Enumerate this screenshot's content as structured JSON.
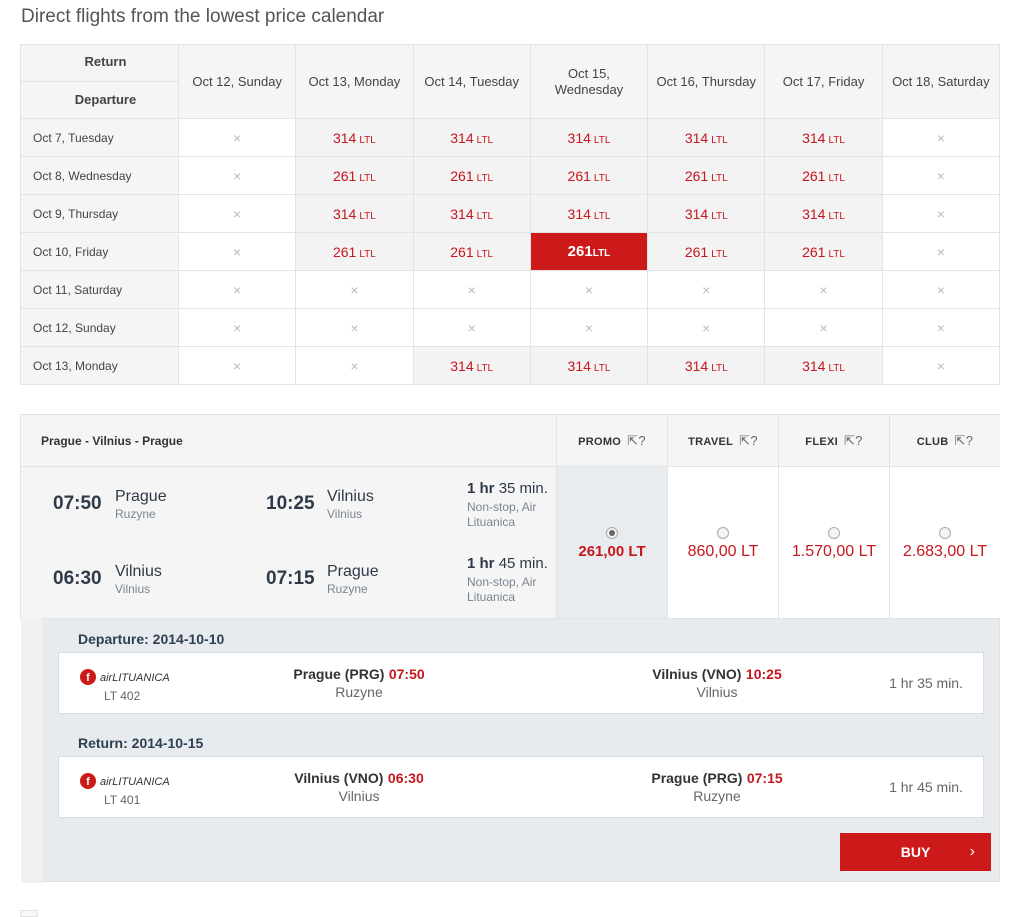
{
  "page": {
    "title": "Direct flights from the lowest price calendar"
  },
  "calendar": {
    "return_label": "Return",
    "departure_label": "Departure",
    "columns": [
      "Oct 12, Sunday",
      "Oct 13, Monday",
      "Oct 14, Tuesday",
      "Oct 15,\nWednesday",
      "Oct 16, Thursday",
      "Oct 17, Friday",
      "Oct 18, Saturday"
    ],
    "currency": "LTL",
    "none_symbol": "×",
    "rows": [
      {
        "label": "Oct 7, Tuesday",
        "cells": [
          null,
          "314",
          "314",
          "314",
          "314",
          "314",
          null
        ]
      },
      {
        "label": "Oct 8, Wednesday",
        "cells": [
          null,
          "261",
          "261",
          "261",
          "261",
          "261",
          null
        ]
      },
      {
        "label": "Oct 9, Thursday",
        "cells": [
          null,
          "314",
          "314",
          "314",
          "314",
          "314",
          null
        ]
      },
      {
        "label": "Oct 10, Friday",
        "cells": [
          null,
          "261",
          "261",
          "261",
          "261",
          "261",
          null
        ]
      },
      {
        "label": "Oct 11, Saturday",
        "cells": [
          null,
          null,
          null,
          null,
          null,
          null,
          null
        ]
      },
      {
        "label": "Oct 12, Sunday",
        "cells": [
          null,
          null,
          null,
          null,
          null,
          null,
          null
        ]
      },
      {
        "label": "Oct 13, Monday",
        "cells": [
          null,
          null,
          "314",
          "314",
          "314",
          "314",
          null
        ]
      }
    ],
    "selected": {
      "row": 3,
      "col": 3
    }
  },
  "fares": {
    "route": "Prague - Vilnius - Prague",
    "legs": [
      {
        "dep_time": "07:50",
        "dep_city": "Prague",
        "dep_airport": "Ruzyne",
        "arr_time": "10:25",
        "arr_city": "Vilnius",
        "arr_airport": "Vilnius",
        "dur_hr": "1 hr",
        "dur_min": "35 min.",
        "info": "Non-stop, Air Lituanica"
      },
      {
        "dep_time": "06:30",
        "dep_city": "Vilnius",
        "dep_airport": "Vilnius",
        "arr_time": "07:15",
        "arr_city": "Prague",
        "arr_airport": "Ruzyne",
        "dur_hr": "1 hr",
        "dur_min": "45 min.",
        "info": "Non-stop, Air Lituanica"
      }
    ],
    "classes": [
      {
        "name": "PROMO",
        "price": "261,00 LT",
        "selected": true
      },
      {
        "name": "TRAVEL",
        "price": "860,00 LT",
        "selected": false
      },
      {
        "name": "FLEXI",
        "price": "1.570,00 LT",
        "selected": false
      },
      {
        "name": "CLUB",
        "price": "2.683,00 LT",
        "selected": false
      }
    ],
    "info_icon": "cursor-help-icon"
  },
  "details": {
    "departure": {
      "title": "Departure: 2014-10-10",
      "airline": "airLITUANICA",
      "flight_no": "LT 402",
      "from_name": "Prague (PRG)",
      "from_time": "07:50",
      "from_city": "Ruzyne",
      "to_name": "Vilnius (VNO)",
      "to_time": "10:25",
      "to_city": "Vilnius",
      "duration": "1 hr 35 min."
    },
    "return": {
      "title": "Return: 2014-10-15",
      "airline": "airLITUANICA",
      "flight_no": "LT 401",
      "from_name": "Vilnius (VNO)",
      "from_time": "06:30",
      "from_city": "Vilnius",
      "to_name": "Prague (PRG)",
      "to_time": "07:15",
      "to_city": "Ruzyne",
      "duration": "1 hr 45 min."
    },
    "buy_label": "BUY",
    "buy_chevron": "›"
  },
  "colors": {
    "accent": "#cc1a1a",
    "price": "#c7161d",
    "dark_text": "#2e3a48"
  }
}
